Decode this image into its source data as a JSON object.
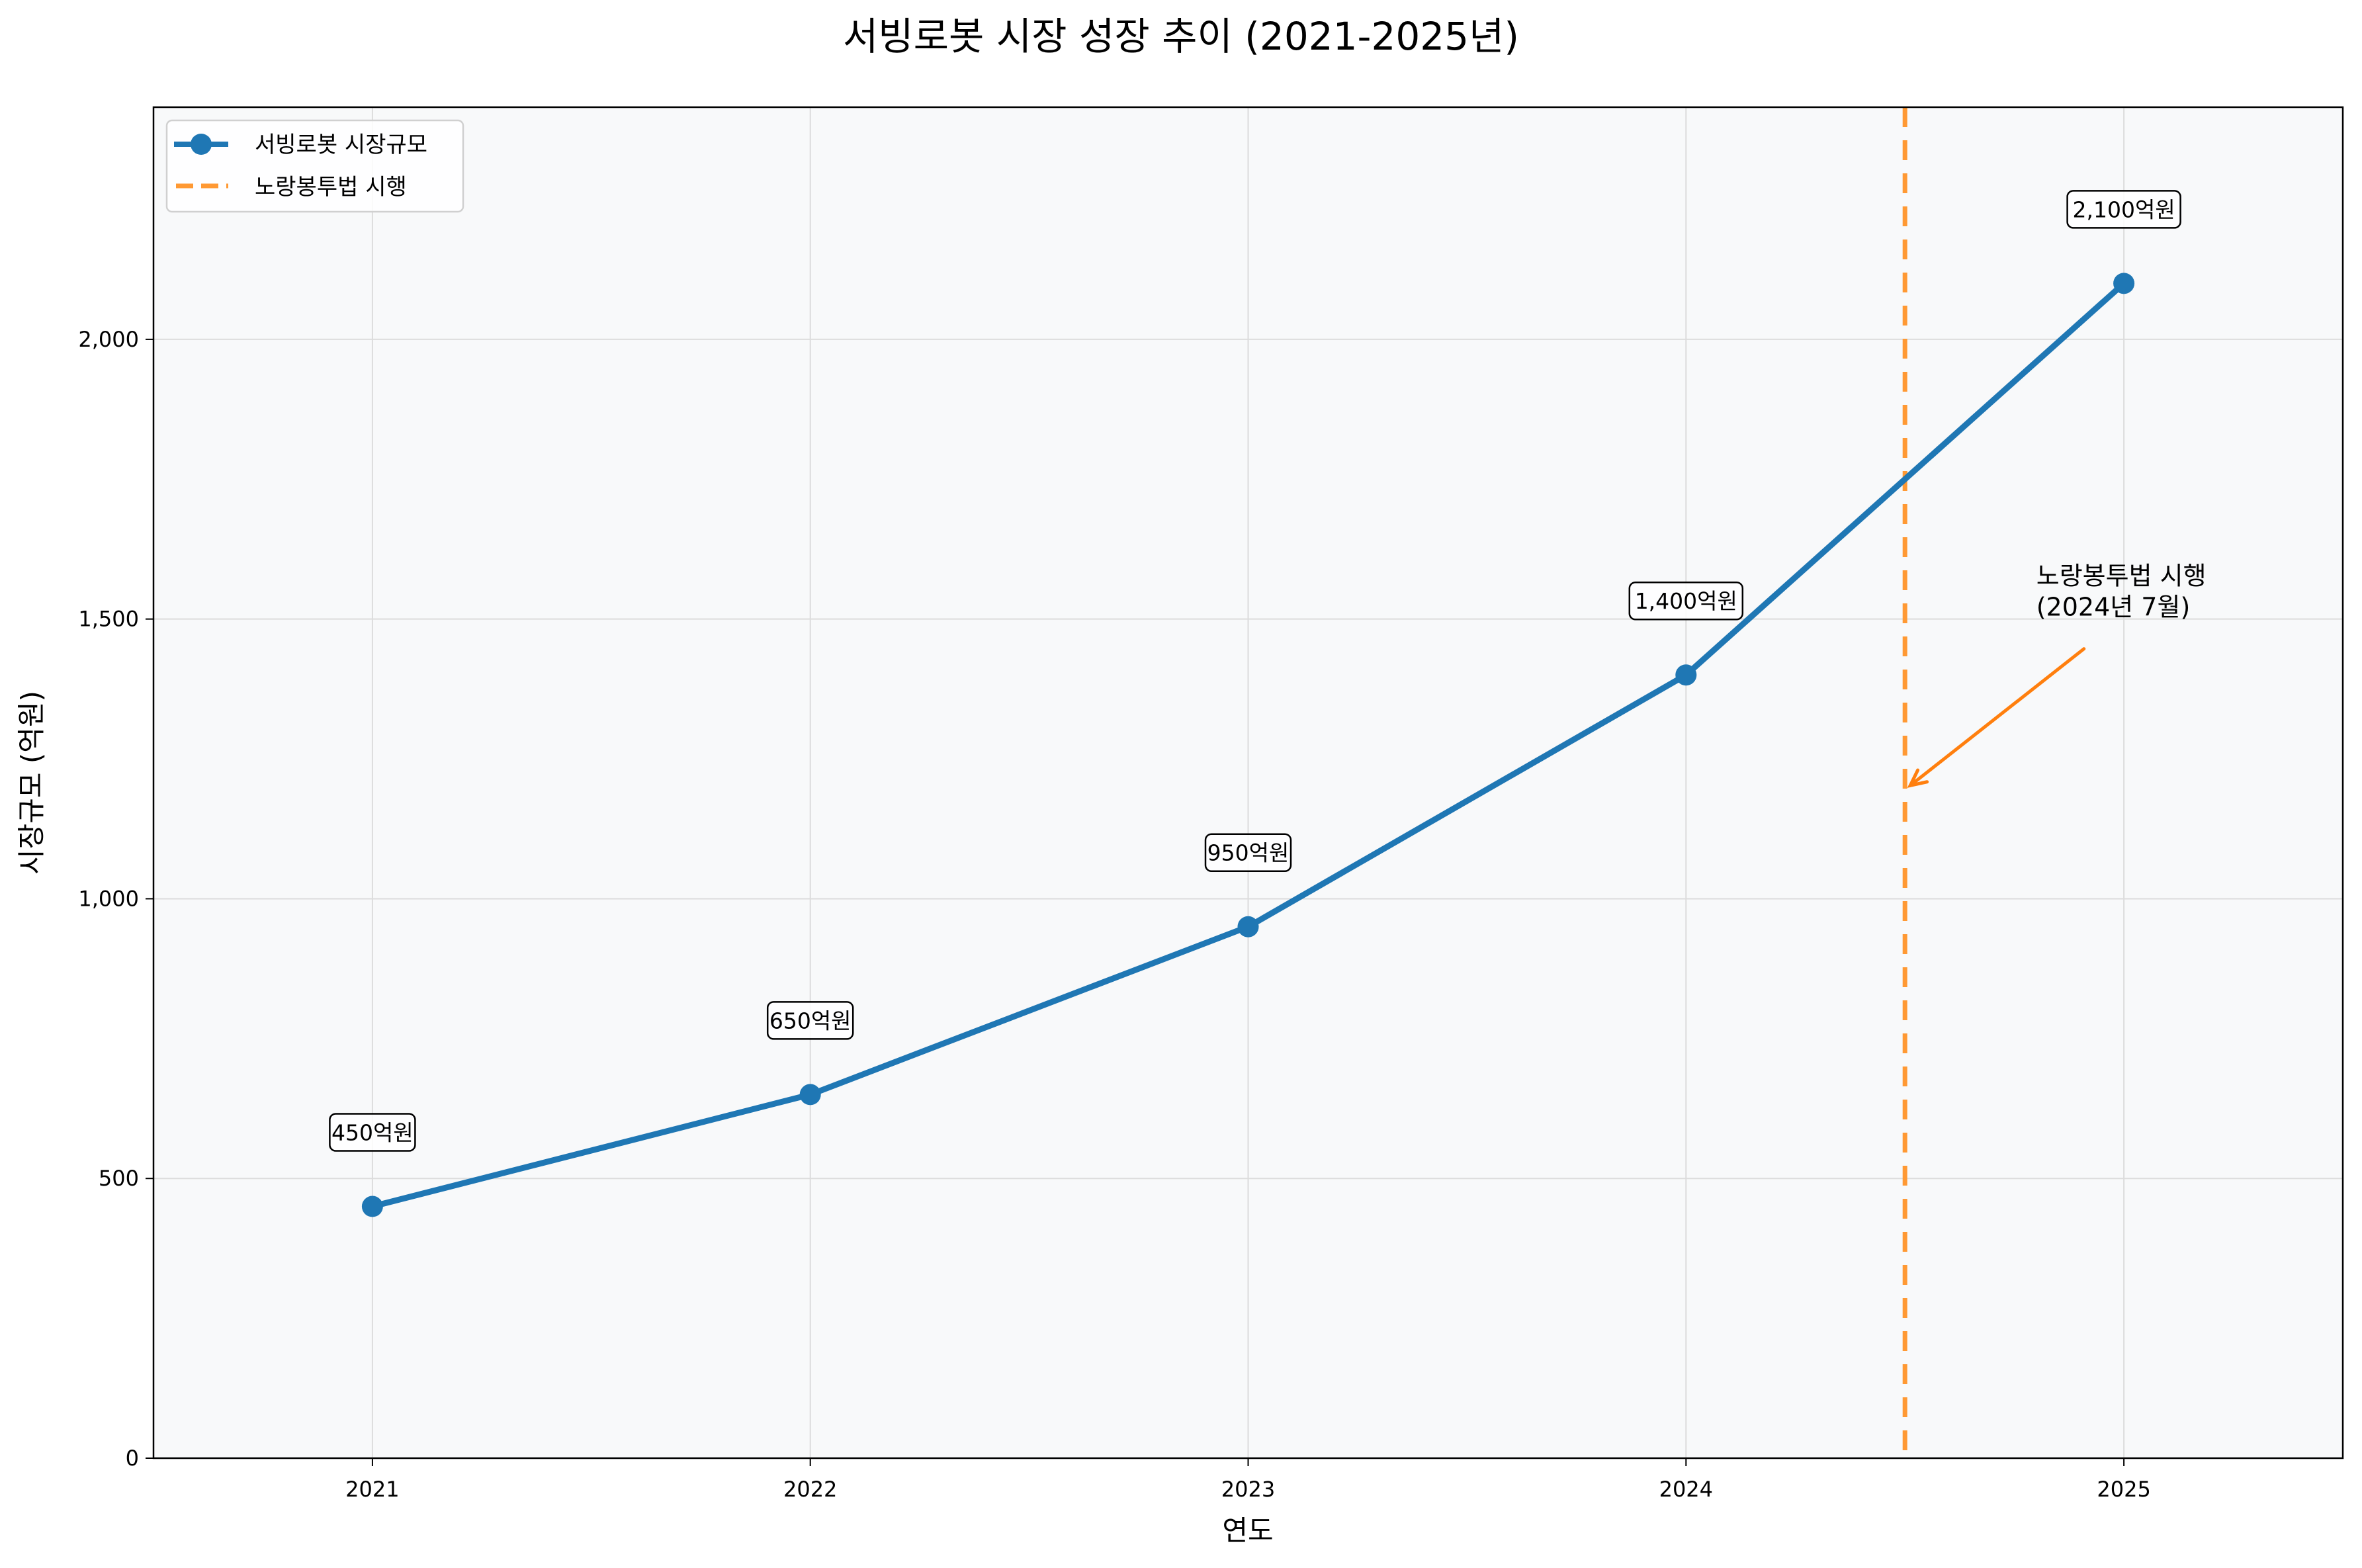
{
  "chart_data": {
    "type": "line",
    "title": "서빙로봇 시장 성장 추이 (2021-2025년)",
    "xlabel": "연도",
    "ylabel": "시장규모 (억원)",
    "x": [
      2021,
      2022,
      2023,
      2024,
      2025
    ],
    "xlim": [
      2020.5,
      2025.5
    ],
    "ylim": [
      0,
      2415
    ],
    "xticks": [
      "2021",
      "2022",
      "2023",
      "2024",
      "2025"
    ],
    "yticks": [
      0,
      500,
      1000,
      1500,
      2000
    ],
    "ytick_labels": [
      "0",
      "500",
      "1,000",
      "1,500",
      "2,000"
    ],
    "grid": true,
    "legend_position": "top-left",
    "series": [
      {
        "name": "서빙로봇 시장규모",
        "values": [
          450,
          650,
          950,
          1400,
          2100
        ],
        "color": "#1f77b4",
        "marker": "circle",
        "data_labels": [
          "450억원",
          "650억원",
          "950억원",
          "1,400억원",
          "2,100억원"
        ]
      }
    ],
    "vline": {
      "name": "노랑봉투법 시행",
      "x": 2024.5,
      "color": "#ff9933",
      "style": "dashed"
    },
    "annotation": {
      "lines": [
        "노랑봉투법 시행",
        "(2024년 7월)"
      ],
      "text_at": [
        2024.8,
        1500
      ],
      "arrow_to": [
        2024.5,
        1200
      ],
      "color": "#ff7f0e"
    },
    "background": "#f8f9fa"
  }
}
